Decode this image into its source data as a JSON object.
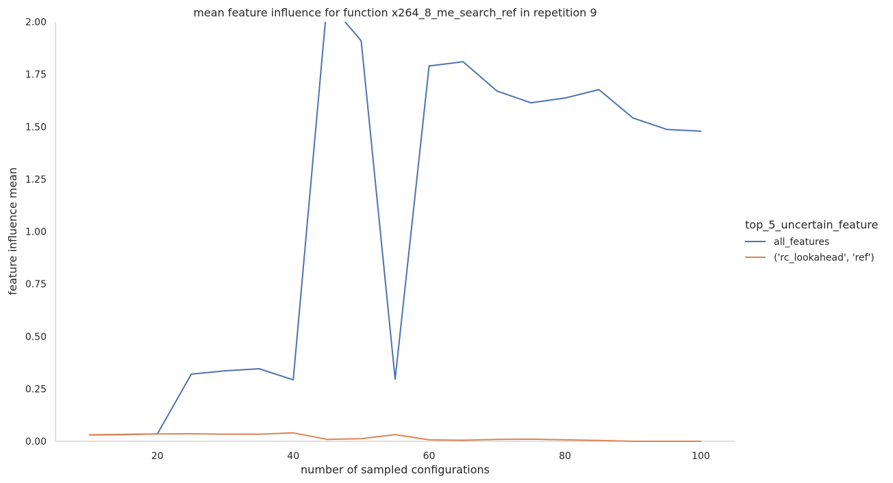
{
  "chart_data": {
    "type": "line",
    "title": "mean feature influence for function x264_8_me_search_ref in repetition 9",
    "xlabel": "number of sampled configurations",
    "ylabel": "feature influence mean",
    "xlim": [
      5,
      105
    ],
    "ylim": [
      0,
      2.0
    ],
    "xticks": [
      20,
      40,
      60,
      80,
      100
    ],
    "yticks": [
      "0.00",
      "0.25",
      "0.50",
      "0.75",
      "1.00",
      "1.25",
      "1.50",
      "1.75",
      "2.00"
    ],
    "grid": false,
    "legend": {
      "title": "top_5_uncertain_feature",
      "placement": "right"
    },
    "series": [
      {
        "name": "all_features",
        "color": "#4c72b0",
        "x": [
          10,
          15,
          20,
          25,
          30,
          35,
          40,
          45,
          50,
          55,
          60,
          65,
          70,
          75,
          80,
          85,
          90,
          95,
          100
        ],
        "y": [
          0.03,
          0.032,
          0.035,
          0.32,
          0.336,
          0.346,
          0.293,
          2.1,
          1.91,
          0.296,
          1.79,
          1.81,
          1.67,
          1.614,
          1.637,
          1.677,
          1.542,
          1.487,
          1.479
        ]
      },
      {
        "name": "('rc_lookahead', 'ref')",
        "color": "#dd8452",
        "x": [
          10,
          15,
          20,
          25,
          30,
          35,
          40,
          45,
          50,
          55,
          60,
          65,
          70,
          75,
          80,
          85,
          90,
          95,
          100
        ],
        "y": [
          0.031,
          0.033,
          0.035,
          0.036,
          0.034,
          0.034,
          0.04,
          0.009,
          0.012,
          0.032,
          0.007,
          0.005,
          0.009,
          0.01,
          0.007,
          0.004,
          0.0,
          0.0,
          0.0
        ]
      }
    ]
  }
}
